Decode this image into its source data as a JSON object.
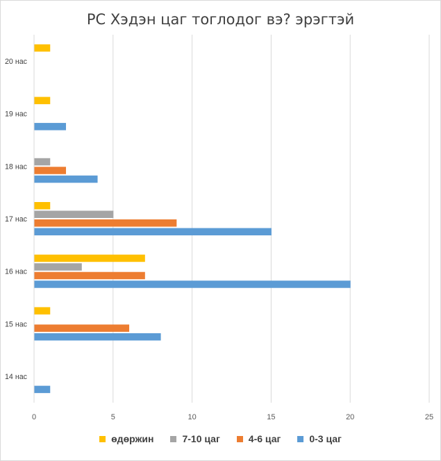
{
  "chart_data": {
    "type": "bar",
    "orientation": "horizontal",
    "title": "PC Хэдэн цаг тоглодог вэ? эрэгтэй",
    "categories": [
      "14 нас",
      "15 нас",
      "16 нас",
      "17 нас",
      "18 нас",
      "19 нас",
      "20 нас"
    ],
    "series": [
      {
        "name": "0-3 цаг",
        "color": "#5b9bd5",
        "values": [
          1,
          8,
          20,
          15,
          4,
          2,
          0
        ]
      },
      {
        "name": "4-6 цаг",
        "color": "#ed7d31",
        "values": [
          0,
          6,
          7,
          9,
          2,
          0,
          0
        ]
      },
      {
        "name": "7-10 цаг",
        "color": "#a5a5a5",
        "values": [
          0,
          0,
          3,
          5,
          1,
          0,
          0
        ]
      },
      {
        "name": "өдөржин",
        "color": "#ffc000",
        "values": [
          0,
          1,
          7,
          1,
          0,
          1,
          1
        ]
      }
    ],
    "xlim": [
      0,
      25
    ],
    "xticks": [
      "0",
      "5",
      "10",
      "15",
      "20",
      "25"
    ],
    "grid": true,
    "legend_position": "bottom",
    "legend_order": [
      "өдөржин",
      "7-10 цаг",
      "4-6 цаг",
      "0-3 цаг"
    ]
  }
}
